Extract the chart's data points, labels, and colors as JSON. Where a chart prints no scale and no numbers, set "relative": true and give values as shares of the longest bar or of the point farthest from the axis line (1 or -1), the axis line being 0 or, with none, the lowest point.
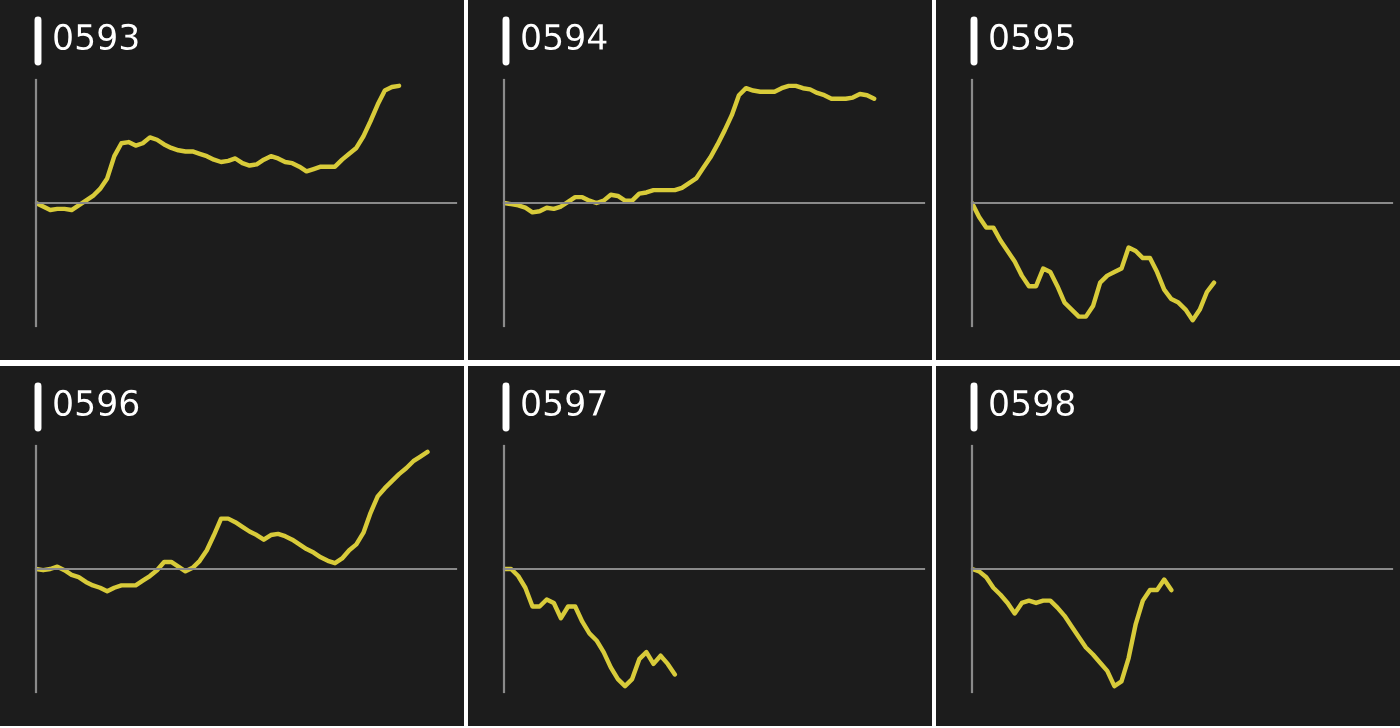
{
  "chart_data": [
    {
      "type": "line",
      "title": "0593",
      "relative": true,
      "categories": [
        null,
        null,
        null,
        null,
        null,
        null,
        null,
        null,
        null,
        null,
        null,
        null,
        null,
        null,
        null,
        null,
        null,
        null,
        null,
        null,
        null,
        null,
        null,
        null,
        null,
        null,
        null,
        null,
        null,
        null,
        null,
        null,
        null,
        null,
        null,
        null,
        null,
        null,
        null,
        null,
        null,
        null,
        null,
        null,
        null,
        null,
        null,
        null,
        null,
        null,
        null,
        null,
        null,
        null,
        null,
        null,
        null,
        null,
        null,
        null
      ],
      "series": [
        {
          "color": "#d8cb3a",
          "values": [
            0,
            -0.03,
            -0.06,
            -0.05,
            -0.05,
            -0.06,
            -0.02,
            0.02,
            0.06,
            0.12,
            0.21,
            0.4,
            0.51,
            0.52,
            0.49,
            0.51,
            0.56,
            0.54,
            0.5,
            0.47,
            0.45,
            0.44,
            0.44,
            0.42,
            0.4,
            0.37,
            0.35,
            0.36,
            0.38,
            0.34,
            0.32,
            0.33,
            0.37,
            0.4,
            0.38,
            0.35,
            0.34,
            0.31,
            0.27,
            0.29,
            0.31,
            0.31,
            0.31,
            0.37,
            0.42,
            0.47,
            0.57,
            0.7,
            0.84,
            0.96,
            0.99,
            1,
            null,
            null,
            null,
            null,
            null,
            null,
            null,
            null
          ]
        }
      ]
    },
    {
      "type": "line",
      "title": "0594",
      "relative": true,
      "categories": [
        null,
        null,
        null,
        null,
        null,
        null,
        null,
        null,
        null,
        null,
        null,
        null,
        null,
        null,
        null,
        null,
        null,
        null,
        null,
        null,
        null,
        null,
        null,
        null,
        null,
        null,
        null,
        null,
        null,
        null,
        null,
        null,
        null,
        null,
        null,
        null,
        null,
        null,
        null,
        null,
        null,
        null,
        null,
        null,
        null,
        null,
        null,
        null,
        null,
        null,
        null,
        null,
        null,
        null,
        null,
        null,
        null,
        null,
        null,
        null
      ],
      "series": [
        {
          "color": "#d8cb3a",
          "values": [
            0,
            -0.01,
            -0.02,
            -0.04,
            -0.08,
            -0.07,
            -0.04,
            -0.05,
            -0.03,
            0.01,
            0.05,
            0.05,
            0.02,
            0,
            0.02,
            0.07,
            0.06,
            0.02,
            0.02,
            0.08,
            0.09,
            0.11,
            0.11,
            0.11,
            0.11,
            0.13,
            0.17,
            0.21,
            0.3,
            0.39,
            0.5,
            0.62,
            0.75,
            0.92,
            0.98,
            0.96,
            0.95,
            0.95,
            0.95,
            0.98,
            1,
            1,
            0.98,
            0.97,
            0.94,
            0.92,
            0.89,
            0.89,
            0.89,
            0.9,
            0.93,
            0.92,
            0.89,
            null,
            null,
            null,
            null,
            null,
            null,
            null
          ]
        }
      ]
    },
    {
      "type": "line",
      "title": "0595",
      "relative": true,
      "categories": [
        null,
        null,
        null,
        null,
        null,
        null,
        null,
        null,
        null,
        null,
        null,
        null,
        null,
        null,
        null,
        null,
        null,
        null,
        null,
        null,
        null,
        null,
        null,
        null,
        null,
        null,
        null,
        null,
        null,
        null,
        null,
        null,
        null,
        null,
        null,
        null,
        null,
        null,
        null,
        null,
        null,
        null,
        null,
        null,
        null,
        null,
        null,
        null,
        null,
        null,
        null,
        null,
        null,
        null,
        null,
        null,
        null,
        null,
        null,
        null
      ],
      "series": [
        {
          "color": "#d8cb3a",
          "values": [
            0,
            -0.12,
            -0.21,
            -0.21,
            -0.32,
            -0.41,
            -0.5,
            -0.62,
            -0.71,
            -0.71,
            -0.56,
            -0.59,
            -0.71,
            -0.85,
            -0.91,
            -0.97,
            -0.97,
            -0.88,
            -0.68,
            -0.62,
            -0.59,
            -0.56,
            -0.38,
            -0.41,
            -0.47,
            -0.47,
            -0.59,
            -0.74,
            -0.82,
            -0.85,
            -0.91,
            -1,
            -0.91,
            -0.76,
            -0.68,
            null,
            null,
            null,
            null,
            null,
            null,
            null,
            null,
            null,
            null,
            null,
            null,
            null,
            null,
            null,
            null,
            null,
            null,
            null,
            null,
            null,
            null,
            null,
            null,
            null
          ]
        }
      ]
    },
    {
      "type": "line",
      "title": "0596",
      "relative": true,
      "categories": [
        null,
        null,
        null,
        null,
        null,
        null,
        null,
        null,
        null,
        null,
        null,
        null,
        null,
        null,
        null,
        null,
        null,
        null,
        null,
        null,
        null,
        null,
        null,
        null,
        null,
        null,
        null,
        null,
        null,
        null,
        null,
        null,
        null,
        null,
        null,
        null,
        null,
        null,
        null,
        null,
        null,
        null,
        null,
        null,
        null,
        null,
        null,
        null,
        null,
        null,
        null,
        null,
        null,
        null,
        null,
        null,
        null,
        null,
        null,
        null
      ],
      "series": [
        {
          "color": "#d8cb3a",
          "values": [
            0,
            -0.01,
            0,
            0.02,
            -0.01,
            -0.05,
            -0.07,
            -0.11,
            -0.14,
            -0.16,
            -0.19,
            -0.16,
            -0.14,
            -0.14,
            -0.14,
            -0.1,
            -0.06,
            -0.01,
            0.06,
            0.06,
            0.02,
            -0.02,
            0.01,
            0.07,
            0.16,
            0.29,
            0.43,
            0.43,
            0.4,
            0.36,
            0.32,
            0.29,
            0.25,
            0.29,
            0.3,
            0.28,
            0.25,
            0.21,
            0.17,
            0.14,
            0.1,
            0.07,
            0.05,
            0.09,
            0.16,
            0.21,
            0.31,
            0.48,
            0.62,
            0.69,
            0.75,
            0.81,
            0.86,
            0.92,
            0.96,
            1,
            null,
            null,
            null,
            null
          ]
        }
      ]
    },
    {
      "type": "line",
      "title": "0597",
      "relative": true,
      "categories": [
        null,
        null,
        null,
        null,
        null,
        null,
        null,
        null,
        null,
        null,
        null,
        null,
        null,
        null,
        null,
        null,
        null,
        null,
        null,
        null,
        null,
        null,
        null,
        null,
        null,
        null,
        null,
        null,
        null,
        null,
        null,
        null,
        null,
        null,
        null,
        null,
        null,
        null,
        null,
        null,
        null,
        null,
        null,
        null,
        null,
        null,
        null,
        null,
        null,
        null,
        null,
        null,
        null,
        null,
        null,
        null,
        null,
        null,
        null,
        null
      ],
      "series": [
        {
          "color": "#d8cb3a",
          "values": [
            0,
            0,
            -0.06,
            -0.16,
            -0.32,
            -0.32,
            -0.26,
            -0.29,
            -0.42,
            -0.32,
            -0.32,
            -0.45,
            -0.55,
            -0.61,
            -0.71,
            -0.84,
            -0.94,
            -1,
            -0.94,
            -0.77,
            -0.71,
            -0.81,
            -0.74,
            -0.81,
            -0.9,
            null,
            null,
            null,
            null,
            null,
            null,
            null,
            null,
            null,
            null,
            null,
            null,
            null,
            null,
            null,
            null,
            null,
            null,
            null,
            null,
            null,
            null,
            null,
            null,
            null,
            null,
            null,
            null,
            null,
            null,
            null,
            null,
            null,
            null,
            null
          ]
        }
      ]
    },
    {
      "type": "line",
      "title": "0598",
      "relative": true,
      "categories": [
        null,
        null,
        null,
        null,
        null,
        null,
        null,
        null,
        null,
        null,
        null,
        null,
        null,
        null,
        null,
        null,
        null,
        null,
        null,
        null,
        null,
        null,
        null,
        null,
        null,
        null,
        null,
        null,
        null,
        null,
        null,
        null,
        null,
        null,
        null,
        null,
        null,
        null,
        null,
        null,
        null,
        null,
        null,
        null,
        null,
        null,
        null,
        null,
        null,
        null,
        null,
        null,
        null,
        null,
        null,
        null,
        null,
        null,
        null,
        null
      ],
      "series": [
        {
          "color": "#d8cb3a",
          "values": [
            0,
            -0.02,
            -0.07,
            -0.16,
            -0.22,
            -0.29,
            -0.38,
            -0.29,
            -0.27,
            -0.29,
            -0.27,
            -0.27,
            -0.33,
            -0.4,
            -0.49,
            -0.58,
            -0.67,
            -0.73,
            -0.8,
            -0.87,
            -1,
            -0.96,
            -0.76,
            -0.47,
            -0.27,
            -0.18,
            -0.18,
            -0.09,
            -0.18,
            null,
            null,
            null,
            null,
            null,
            null,
            null,
            null,
            null,
            null,
            null,
            null,
            null,
            null,
            null,
            null,
            null,
            null,
            null,
            null,
            null,
            null,
            null,
            null,
            null,
            null,
            null,
            null,
            null,
            null,
            null
          ]
        }
      ]
    }
  ]
}
